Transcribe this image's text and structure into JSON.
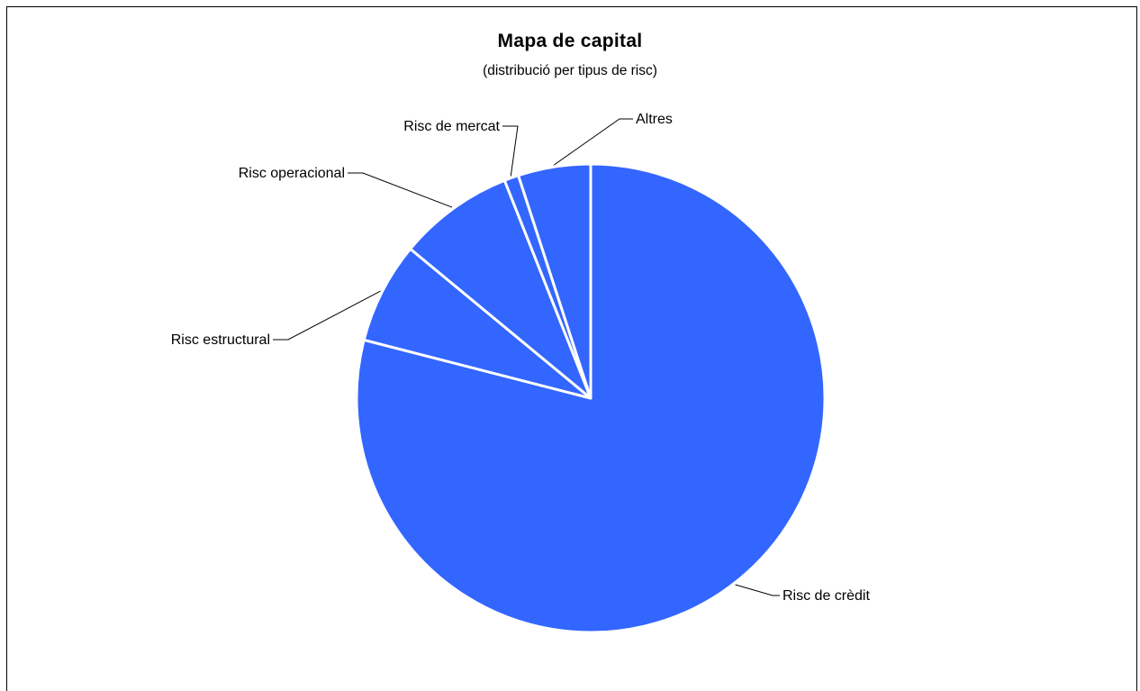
{
  "chart_data": {
    "type": "pie",
    "title": "Mapa de capital",
    "subtitle": "(distribució per tipus de risc)",
    "start_angle_deg": 0,
    "direction": "clockwise",
    "slices": [
      {
        "label": "Risc de crèdit",
        "value": 79.0
      },
      {
        "label": "Risc estructural",
        "value": 7.0
      },
      {
        "label": "Risc operacional",
        "value": 8.0
      },
      {
        "label": "Risc de mercat",
        "value": 1.0
      },
      {
        "label": "Altres",
        "value": 5.0
      }
    ],
    "colors": {
      "slice": "#3366ff",
      "border": "#ffffff",
      "leader": "#000000"
    }
  }
}
